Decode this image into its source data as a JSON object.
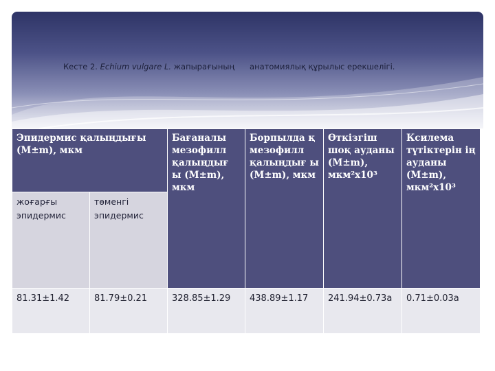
{
  "caption": {
    "prefix": "Кесте 2.",
    "species": "Echium vulgare L.",
    "suffix": "жапырағының      анатомиялық құрылыс ерекшелігі."
  },
  "table": {
    "headers": {
      "epidermis": "Эпидермис қалыңдығы (M±m), мкм",
      "upper": "жоғарғы эпидермис",
      "lower": "төменгі эпидермис",
      "palisade": "Бағаналы мезофилл қалыңдығ ы (M±m), мкм",
      "spongy": "Борпылда қ мезофилл қалыңдығ ы (M±m), мкм",
      "phloem": "Өткізгіш шоқ ауданы (M±m), мкм²х10³",
      "xylem": "Ксилема түтіктерін ің ауданы (M±m), мкм²х10³"
    },
    "row": {
      "upper": "81.31±1.42",
      "lower": "81.79±0.21",
      "palisade": "328.85±1.29",
      "spongy": "438.89±1.17",
      "phloem": "241.94±0.73a",
      "xylem": "0.71±0.03a"
    }
  }
}
